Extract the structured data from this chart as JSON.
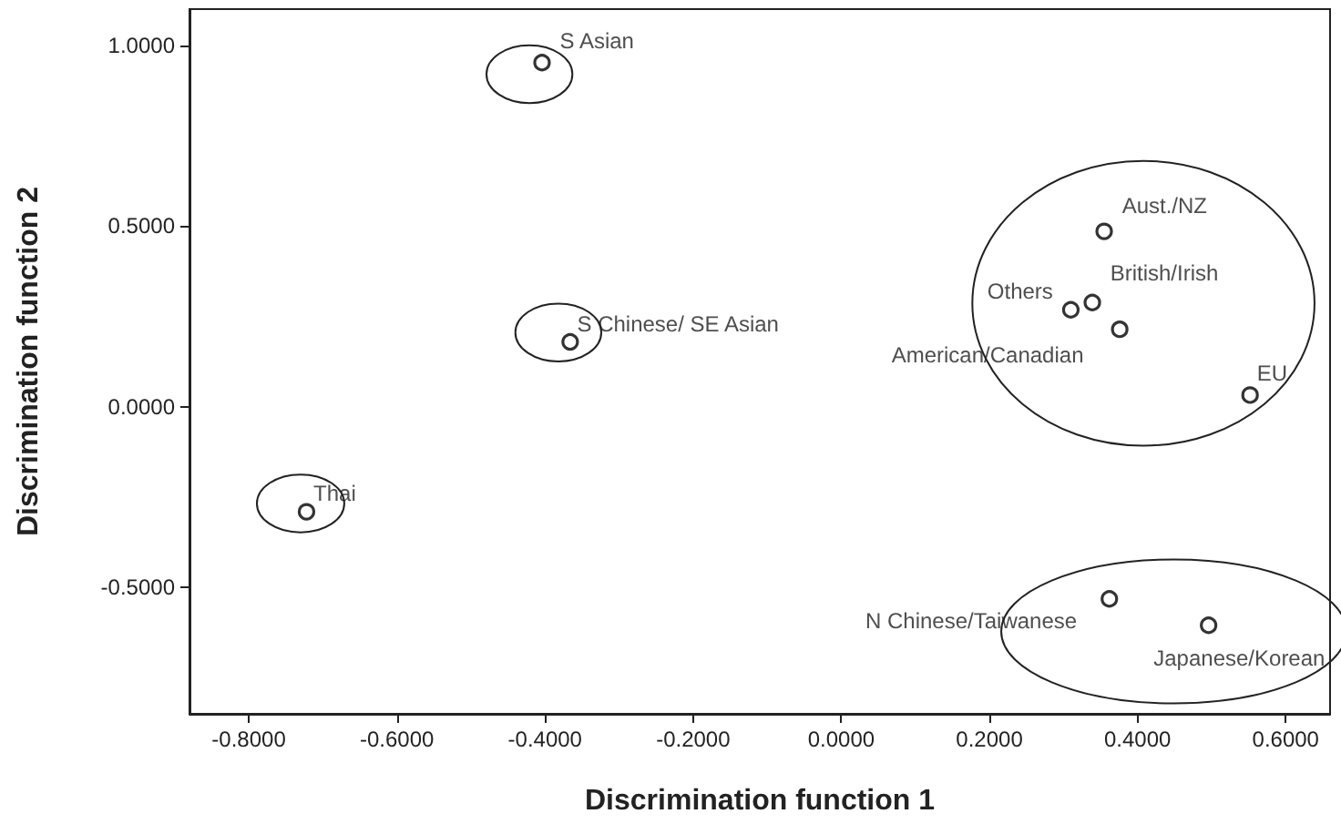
{
  "chart_data": {
    "type": "scatter",
    "xlabel": "Discrimination function 1",
    "ylabel": "Discrimination function 2",
    "xlim": [
      -0.88,
      0.66
    ],
    "ylim": [
      -0.85,
      1.1
    ],
    "xticks": [
      {
        "value": -0.8,
        "label": "-0.8000"
      },
      {
        "value": -0.6,
        "label": "-0.6000"
      },
      {
        "value": -0.4,
        "label": "-0.4000"
      },
      {
        "value": -0.2,
        "label": "-0.2000"
      },
      {
        "value": 0,
        "label": "0.0000"
      },
      {
        "value": 0.2,
        "label": "0.2000"
      },
      {
        "value": 0.4,
        "label": "0.4000"
      },
      {
        "value": 0.6,
        "label": "0.6000"
      }
    ],
    "yticks": [
      {
        "value": -0.5,
        "label": "-0.5000"
      },
      {
        "value": 0,
        "label": "0.0000"
      },
      {
        "value": 0.5,
        "label": "0.5000"
      },
      {
        "value": 1,
        "label": "1.0000"
      }
    ],
    "grid": false,
    "legend": false,
    "marker": "circle",
    "series": [
      {
        "name": "S Asian",
        "color": "#000000",
        "x": [
          -0.404
        ],
        "values": [
          0.952
        ]
      },
      {
        "name": "S Chinese/ SE Asian",
        "color": "#000000",
        "x": [
          -0.366
        ],
        "values": [
          0.179
        ]
      },
      {
        "name": "Thai",
        "color": "#000000",
        "x": [
          -0.722
        ],
        "values": [
          -0.291
        ]
      },
      {
        "name": "Aust./NZ",
        "color": "#000000",
        "x": [
          0.355
        ],
        "values": [
          0.485
        ]
      },
      {
        "name": "Others",
        "color": "#000000",
        "x": [
          0.31
        ],
        "values": [
          0.268
        ]
      },
      {
        "name": "British/Irish",
        "color": "#000000",
        "x": [
          0.339
        ],
        "values": [
          0.288
        ]
      },
      {
        "name": "American/Canadian",
        "color": "#000000",
        "x": [
          0.376
        ],
        "values": [
          0.214
        ]
      },
      {
        "name": "EU",
        "color": "#000000",
        "x": [
          0.552
        ],
        "values": [
          0.032
        ]
      },
      {
        "name": "N Chinese/Taiwanese",
        "color": "#000000",
        "x": [
          0.362
        ],
        "values": [
          -0.532
        ]
      },
      {
        "name": "Japanese/Korean",
        "color": "#000000",
        "x": [
          0.496
        ],
        "values": [
          -0.605
        ]
      }
    ]
  }
}
